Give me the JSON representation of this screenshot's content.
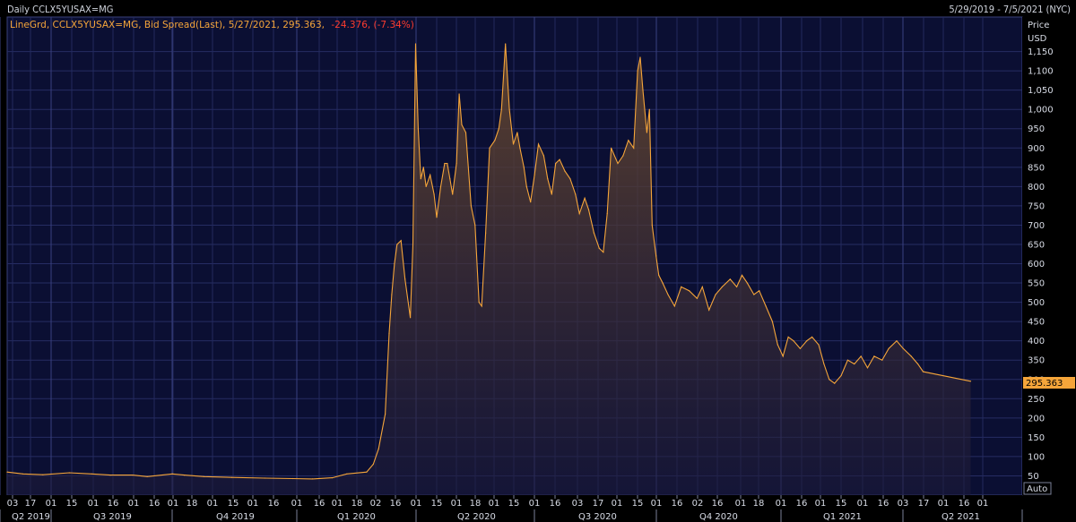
{
  "header": {
    "title": "Daily CCLX5YUSAX=MG",
    "date_range": "5/29/2019 - 7/5/2021 (NYC)"
  },
  "legend": {
    "series_label": "LineGrd, CCLX5YUSAX=MG, Bid Spread(Last), 5/27/2021, 295.363,",
    "change": "-24.376, (-7.34%)"
  },
  "colors": {
    "background": "#0b0f33",
    "grid": "#2a3068",
    "line": "#f5a53a",
    "legend_text": "#f5a53a",
    "change_text": "#ff3c2e",
    "last_tag_bg": "#f5a53a"
  },
  "axis": {
    "price_label": "Price",
    "unit_label": "USD",
    "auto_button": "Auto",
    "y_ticks": [
      "50",
      "100",
      "150",
      "200",
      "250",
      "300",
      "350",
      "400",
      "450",
      "500",
      "550",
      "600",
      "650",
      "700",
      "750",
      "800",
      "850",
      "900",
      "950",
      "1,000",
      "1,050",
      "1,100",
      "1,150"
    ],
    "last_value_tag": "295.363"
  },
  "chart_data": {
    "type": "area",
    "title": "",
    "ylim": [
      0,
      1200
    ],
    "x_tick_labels": [
      "03",
      "17",
      "01",
      "15",
      "01",
      "16",
      "01",
      "16",
      "01",
      "18",
      "01",
      "15",
      "01",
      "16",
      "01",
      "16",
      "01",
      "18",
      "02",
      "16",
      "01",
      "15",
      "01",
      "18",
      "01",
      "15",
      "01",
      "16",
      "03",
      "17",
      "01",
      "15",
      "01",
      "16",
      "02",
      "16",
      "01",
      "18",
      "01",
      "16",
      "01",
      "15",
      "01",
      "16",
      "03",
      "17",
      "01",
      "16",
      "01"
    ],
    "quarters": [
      "Q2 2019",
      "Q3 2019",
      "Q4 2019",
      "Q1 2020",
      "Q2 2020",
      "Q3 2020",
      "Q4 2020",
      "Q1 2021",
      "Q2 2021"
    ],
    "series": [
      {
        "values": [
          [
            "2019-05-29",
            60
          ],
          [
            "2019-06-10",
            55
          ],
          [
            "2019-06-25",
            53
          ],
          [
            "2019-07-15",
            58
          ],
          [
            "2019-08-01",
            55
          ],
          [
            "2019-08-15",
            52
          ],
          [
            "2019-09-01",
            52
          ],
          [
            "2019-09-12",
            48
          ],
          [
            "2019-10-01",
            55
          ],
          [
            "2019-10-10",
            52
          ],
          [
            "2019-10-25",
            48
          ],
          [
            "2019-11-15",
            46
          ],
          [
            "2019-12-10",
            44
          ],
          [
            "2019-12-31",
            43
          ],
          [
            "2020-01-15",
            42
          ],
          [
            "2020-01-30",
            45
          ],
          [
            "2020-02-10",
            55
          ],
          [
            "2020-02-25",
            60
          ],
          [
            "2020-03-01",
            80
          ],
          [
            "2020-03-05",
            120
          ],
          [
            "2020-03-10",
            210
          ],
          [
            "2020-03-13",
            420
          ],
          [
            "2020-03-15",
            520
          ],
          [
            "2020-03-17",
            600
          ],
          [
            "2020-03-19",
            650
          ],
          [
            "2020-03-22",
            660
          ],
          [
            "2020-03-25",
            560
          ],
          [
            "2020-03-29",
            460
          ],
          [
            "2020-03-31",
            650
          ],
          [
            "2020-04-02",
            1170
          ],
          [
            "2020-04-04",
            950
          ],
          [
            "2020-04-06",
            820
          ],
          [
            "2020-04-08",
            850
          ],
          [
            "2020-04-10",
            800
          ],
          [
            "2020-04-13",
            830
          ],
          [
            "2020-04-16",
            780
          ],
          [
            "2020-04-18",
            720
          ],
          [
            "2020-04-21",
            800
          ],
          [
            "2020-04-24",
            860
          ],
          [
            "2020-04-26",
            860
          ],
          [
            "2020-04-28",
            820
          ],
          [
            "2020-04-30",
            780
          ],
          [
            "2020-05-03",
            860
          ],
          [
            "2020-05-05",
            1040
          ],
          [
            "2020-05-07",
            960
          ],
          [
            "2020-05-10",
            940
          ],
          [
            "2020-05-14",
            750
          ],
          [
            "2020-05-17",
            700
          ],
          [
            "2020-05-20",
            500
          ],
          [
            "2020-05-22",
            490
          ],
          [
            "2020-05-25",
            680
          ],
          [
            "2020-05-28",
            900
          ],
          [
            "2020-06-01",
            920
          ],
          [
            "2020-06-04",
            950
          ],
          [
            "2020-06-06",
            1000
          ],
          [
            "2020-06-09",
            1170
          ],
          [
            "2020-06-12",
            1000
          ],
          [
            "2020-06-15",
            910
          ],
          [
            "2020-06-18",
            940
          ],
          [
            "2020-06-20",
            900
          ],
          [
            "2020-06-23",
            850
          ],
          [
            "2020-06-25",
            800
          ],
          [
            "2020-06-28",
            760
          ],
          [
            "2020-07-01",
            830
          ],
          [
            "2020-07-04",
            910
          ],
          [
            "2020-07-08",
            880
          ],
          [
            "2020-07-11",
            820
          ],
          [
            "2020-07-14",
            780
          ],
          [
            "2020-07-17",
            860
          ],
          [
            "2020-07-20",
            870
          ],
          [
            "2020-07-24",
            840
          ],
          [
            "2020-07-28",
            820
          ],
          [
            "2020-08-01",
            780
          ],
          [
            "2020-08-04",
            730
          ],
          [
            "2020-08-08",
            770
          ],
          [
            "2020-08-11",
            740
          ],
          [
            "2020-08-15",
            680
          ],
          [
            "2020-08-19",
            640
          ],
          [
            "2020-08-22",
            630
          ],
          [
            "2020-08-25",
            730
          ],
          [
            "2020-08-28",
            900
          ],
          [
            "2020-09-02",
            860
          ],
          [
            "2020-09-06",
            880
          ],
          [
            "2020-09-10",
            920
          ],
          [
            "2020-09-14",
            900
          ],
          [
            "2020-09-17",
            1100
          ],
          [
            "2020-09-19",
            1135
          ],
          [
            "2020-09-21",
            1050
          ],
          [
            "2020-09-24",
            940
          ],
          [
            "2020-09-26",
            1000
          ],
          [
            "2020-09-28",
            700
          ],
          [
            "2020-10-01",
            620
          ],
          [
            "2020-10-03",
            570
          ],
          [
            "2020-10-06",
            550
          ],
          [
            "2020-10-10",
            520
          ],
          [
            "2020-10-15",
            490
          ],
          [
            "2020-10-20",
            540
          ],
          [
            "2020-10-26",
            530
          ],
          [
            "2020-11-01",
            510
          ],
          [
            "2020-11-05",
            540
          ],
          [
            "2020-11-10",
            480
          ],
          [
            "2020-11-15",
            520
          ],
          [
            "2020-11-20",
            540
          ],
          [
            "2020-11-26",
            560
          ],
          [
            "2020-12-01",
            540
          ],
          [
            "2020-12-05",
            570
          ],
          [
            "2020-12-09",
            550
          ],
          [
            "2020-12-14",
            520
          ],
          [
            "2020-12-18",
            530
          ],
          [
            "2020-12-23",
            490
          ],
          [
            "2020-12-28",
            450
          ],
          [
            "2021-01-01",
            390
          ],
          [
            "2021-01-05",
            360
          ],
          [
            "2021-01-09",
            410
          ],
          [
            "2021-01-13",
            400
          ],
          [
            "2021-01-18",
            380
          ],
          [
            "2021-01-23",
            400
          ],
          [
            "2021-01-27",
            410
          ],
          [
            "2021-02-01",
            390
          ],
          [
            "2021-02-05",
            340
          ],
          [
            "2021-02-09",
            300
          ],
          [
            "2021-02-13",
            290
          ],
          [
            "2021-02-18",
            310
          ],
          [
            "2021-02-23",
            350
          ],
          [
            "2021-02-28",
            340
          ],
          [
            "2021-03-05",
            360
          ],
          [
            "2021-03-10",
            330
          ],
          [
            "2021-03-15",
            360
          ],
          [
            "2021-03-21",
            350
          ],
          [
            "2021-03-26",
            380
          ],
          [
            "2021-04-01",
            400
          ],
          [
            "2021-04-06",
            380
          ],
          [
            "2021-04-12",
            360
          ],
          [
            "2021-04-17",
            340
          ],
          [
            "2021-04-21",
            320
          ],
          [
            "2021-05-27",
            295.363
          ]
        ]
      }
    ]
  }
}
